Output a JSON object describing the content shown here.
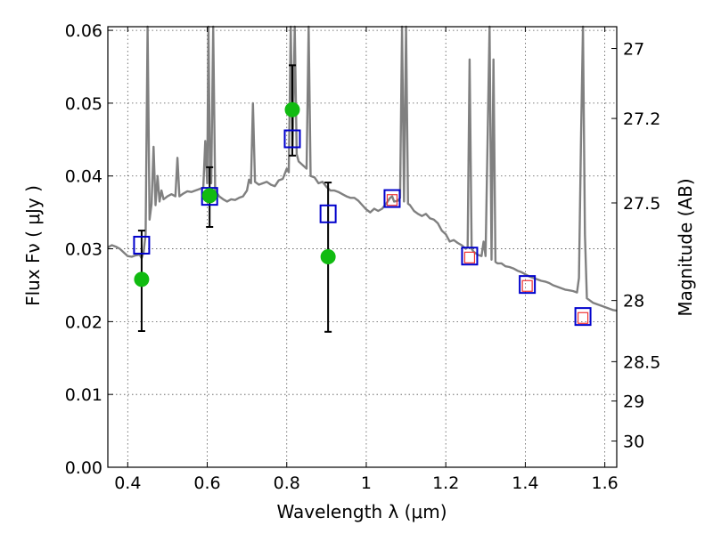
{
  "chart_data": {
    "type": "scatter",
    "title": "",
    "xlabel": "Wavelength  λ (μm)",
    "ylabel": "Flux  Fν  ( μJy )",
    "y2label": "Magnitude (AB)",
    "xlim": [
      0.35,
      1.63
    ],
    "ylim": [
      0.0,
      0.0605
    ],
    "grid": true,
    "x_ticks": [
      0.4,
      0.6,
      0.8,
      1.0,
      1.2,
      1.4,
      1.6
    ],
    "x_tick_labels": [
      "0.4",
      "0.6",
      "0.8",
      "1",
      "1.2",
      "1.4",
      "1.6"
    ],
    "y_ticks": [
      0.0,
      0.01,
      0.02,
      0.03,
      0.04,
      0.05,
      0.06
    ],
    "y_tick_labels": [
      "0.00",
      "0.01",
      "0.02",
      "0.03",
      "0.04",
      "0.05",
      "0.06"
    ],
    "y2_ticks": [
      {
        "label": "27",
        "flux": 0.0575
      },
      {
        "label": "27.2",
        "flux": 0.0479
      },
      {
        "label": "27.5",
        "flux": 0.0363
      },
      {
        "label": "28",
        "flux": 0.0229
      },
      {
        "label": "28.5",
        "flux": 0.0145
      },
      {
        "label": "29",
        "flux": 0.0091
      },
      {
        "label": "30",
        "flux": 0.0036
      }
    ],
    "colors": {
      "model": "#808080",
      "observed": "#11bb11",
      "errorbar": "#000000",
      "fit": "#0000cc",
      "predicted": "#ee3333",
      "grid": "#555555"
    },
    "series": [
      {
        "kind": "line",
        "points": [
          [
            0.35,
            0.0302
          ],
          [
            0.36,
            0.0305
          ],
          [
            0.37,
            0.0303
          ],
          [
            0.38,
            0.03
          ],
          [
            0.39,
            0.0295
          ],
          [
            0.4,
            0.029
          ],
          [
            0.41,
            0.0289
          ],
          [
            0.42,
            0.0291
          ],
          [
            0.43,
            0.0292
          ],
          [
            0.435,
            0.0287
          ],
          [
            0.44,
            0.0295
          ],
          [
            0.445,
            0.032
          ],
          [
            0.45,
            0.0605
          ],
          [
            0.455,
            0.034
          ],
          [
            0.46,
            0.0362
          ],
          [
            0.465,
            0.044
          ],
          [
            0.47,
            0.036
          ],
          [
            0.475,
            0.04
          ],
          [
            0.48,
            0.0365
          ],
          [
            0.485,
            0.038
          ],
          [
            0.49,
            0.0368
          ],
          [
            0.495,
            0.037
          ],
          [
            0.5,
            0.0372
          ],
          [
            0.51,
            0.0375
          ],
          [
            0.52,
            0.0372
          ],
          [
            0.525,
            0.0425
          ],
          [
            0.53,
            0.0372
          ],
          [
            0.54,
            0.0376
          ],
          [
            0.55,
            0.0379
          ],
          [
            0.56,
            0.0378
          ],
          [
            0.57,
            0.038
          ],
          [
            0.58,
            0.0382
          ],
          [
            0.59,
            0.0384
          ],
          [
            0.595,
            0.0448
          ],
          [
            0.6,
            0.039
          ],
          [
            0.603,
            0.0605
          ],
          [
            0.607,
            0.04
          ],
          [
            0.61,
            0.039
          ],
          [
            0.615,
            0.0605
          ],
          [
            0.62,
            0.038
          ],
          [
            0.63,
            0.0372
          ],
          [
            0.64,
            0.0368
          ],
          [
            0.65,
            0.0365
          ],
          [
            0.66,
            0.0368
          ],
          [
            0.67,
            0.0367
          ],
          [
            0.68,
            0.037
          ],
          [
            0.69,
            0.0372
          ],
          [
            0.7,
            0.038
          ],
          [
            0.705,
            0.0395
          ],
          [
            0.71,
            0.039
          ],
          [
            0.715,
            0.05
          ],
          [
            0.72,
            0.0392
          ],
          [
            0.73,
            0.0388
          ],
          [
            0.74,
            0.039
          ],
          [
            0.75,
            0.0392
          ],
          [
            0.76,
            0.0388
          ],
          [
            0.77,
            0.0386
          ],
          [
            0.78,
            0.0394
          ],
          [
            0.79,
            0.0396
          ],
          [
            0.8,
            0.041
          ],
          [
            0.805,
            0.0405
          ],
          [
            0.81,
            0.0605
          ],
          [
            0.815,
            0.044
          ],
          [
            0.82,
            0.0605
          ],
          [
            0.825,
            0.043
          ],
          [
            0.83,
            0.042
          ],
          [
            0.84,
            0.0415
          ],
          [
            0.85,
            0.041
          ],
          [
            0.855,
            0.0605
          ],
          [
            0.86,
            0.04
          ],
          [
            0.87,
            0.0398
          ],
          [
            0.88,
            0.039
          ],
          [
            0.89,
            0.0392
          ],
          [
            0.9,
            0.0385
          ],
          [
            0.91,
            0.038
          ],
          [
            0.92,
            0.038
          ],
          [
            0.93,
            0.0378
          ],
          [
            0.94,
            0.0375
          ],
          [
            0.95,
            0.0372
          ],
          [
            0.96,
            0.037
          ],
          [
            0.97,
            0.037
          ],
          [
            0.98,
            0.0366
          ],
          [
            0.99,
            0.036
          ],
          [
            1.0,
            0.0354
          ],
          [
            1.01,
            0.035
          ],
          [
            1.02,
            0.0355
          ],
          [
            1.03,
            0.0352
          ],
          [
            1.04,
            0.0355
          ],
          [
            1.05,
            0.0362
          ],
          [
            1.06,
            0.037
          ],
          [
            1.065,
            0.0372
          ],
          [
            1.07,
            0.0365
          ],
          [
            1.08,
            0.0366
          ],
          [
            1.085,
            0.037
          ],
          [
            1.09,
            0.0605
          ],
          [
            1.095,
            0.0365
          ],
          [
            1.1,
            0.0605
          ],
          [
            1.105,
            0.0362
          ],
          [
            1.11,
            0.036
          ],
          [
            1.12,
            0.0352
          ],
          [
            1.13,
            0.0348
          ],
          [
            1.14,
            0.0345
          ],
          [
            1.15,
            0.0348
          ],
          [
            1.16,
            0.0342
          ],
          [
            1.17,
            0.034
          ],
          [
            1.18,
            0.0335
          ],
          [
            1.19,
            0.0325
          ],
          [
            1.2,
            0.032
          ],
          [
            1.21,
            0.031
          ],
          [
            1.22,
            0.0312
          ],
          [
            1.23,
            0.0308
          ],
          [
            1.24,
            0.0305
          ],
          [
            1.25,
            0.03
          ],
          [
            1.255,
            0.0302
          ],
          [
            1.26,
            0.056
          ],
          [
            1.265,
            0.03
          ],
          [
            1.27,
            0.0296
          ],
          [
            1.28,
            0.0292
          ],
          [
            1.29,
            0.029
          ],
          [
            1.295,
            0.031
          ],
          [
            1.3,
            0.029
          ],
          [
            1.31,
            0.0605
          ],
          [
            1.315,
            0.0285
          ],
          [
            1.32,
            0.056
          ],
          [
            1.325,
            0.0282
          ],
          [
            1.33,
            0.028
          ],
          [
            1.34,
            0.028
          ],
          [
            1.35,
            0.0276
          ],
          [
            1.36,
            0.0275
          ],
          [
            1.37,
            0.0273
          ],
          [
            1.38,
            0.027
          ],
          [
            1.39,
            0.0268
          ],
          [
            1.4,
            0.0265
          ],
          [
            1.41,
            0.0262
          ],
          [
            1.42,
            0.026
          ],
          [
            1.43,
            0.0258
          ],
          [
            1.44,
            0.0256
          ],
          [
            1.45,
            0.0255
          ],
          [
            1.46,
            0.0253
          ],
          [
            1.47,
            0.025
          ],
          [
            1.48,
            0.0248
          ],
          [
            1.49,
            0.0246
          ],
          [
            1.5,
            0.0244
          ],
          [
            1.51,
            0.0243
          ],
          [
            1.52,
            0.0242
          ],
          [
            1.53,
            0.024
          ],
          [
            1.535,
            0.026
          ],
          [
            1.54,
            0.045
          ],
          [
            1.545,
            0.0605
          ],
          [
            1.55,
            0.032
          ],
          [
            1.555,
            0.0232
          ],
          [
            1.56,
            0.023
          ],
          [
            1.57,
            0.0226
          ],
          [
            1.58,
            0.0224
          ],
          [
            1.59,
            0.0222
          ],
          [
            1.6,
            0.022
          ],
          [
            1.61,
            0.0218
          ],
          [
            1.62,
            0.0216
          ],
          [
            1.63,
            0.0215
          ]
        ]
      },
      {
        "kind": "observed",
        "points": [
          {
            "x": 0.435,
            "y": 0.0258,
            "low": 0.0187,
            "high": 0.0325
          },
          {
            "x": 0.606,
            "y": 0.0373,
            "low": 0.033,
            "high": 0.0412
          },
          {
            "x": 0.814,
            "y": 0.0491,
            "low": 0.0428,
            "high": 0.0552
          },
          {
            "x": 0.904,
            "y": 0.0289,
            "low": 0.0186,
            "high": 0.0391
          }
        ]
      },
      {
        "kind": "fit",
        "points": [
          {
            "x": 0.435,
            "y": 0.0305
          },
          {
            "x": 0.606,
            "y": 0.0372
          },
          {
            "x": 0.814,
            "y": 0.0451
          },
          {
            "x": 0.904,
            "y": 0.0348
          },
          {
            "x": 1.065,
            "y": 0.0369
          },
          {
            "x": 1.26,
            "y": 0.029
          },
          {
            "x": 1.405,
            "y": 0.0251
          },
          {
            "x": 1.545,
            "y": 0.0207
          }
        ]
      },
      {
        "kind": "predicted",
        "points": [
          {
            "x": 1.065,
            "y": 0.0367
          },
          {
            "x": 1.26,
            "y": 0.0288
          },
          {
            "x": 1.405,
            "y": 0.0249
          },
          {
            "x": 1.545,
            "y": 0.0205
          }
        ]
      }
    ]
  }
}
